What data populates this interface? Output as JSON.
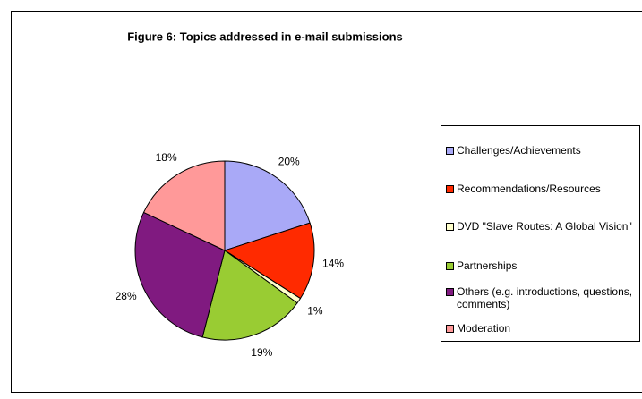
{
  "chart_data": {
    "type": "pie",
    "title": "Figure 6: Topics addressed in e-mail submissions",
    "categories": [
      "Challenges/Achievements",
      "Recommendations/Resources",
      "DVD \"Slave Routes: A Global Vision\"",
      "Partnerships",
      "Others (e.g. introductions, questions, comments)",
      "Moderation"
    ],
    "values": [
      20,
      14,
      1,
      19,
      28,
      18
    ],
    "colors": [
      "#a9a9f7",
      "#ff2a00",
      "#ffffcc",
      "#99cc33",
      "#801a80",
      "#ff9999"
    ],
    "legend": "right"
  }
}
